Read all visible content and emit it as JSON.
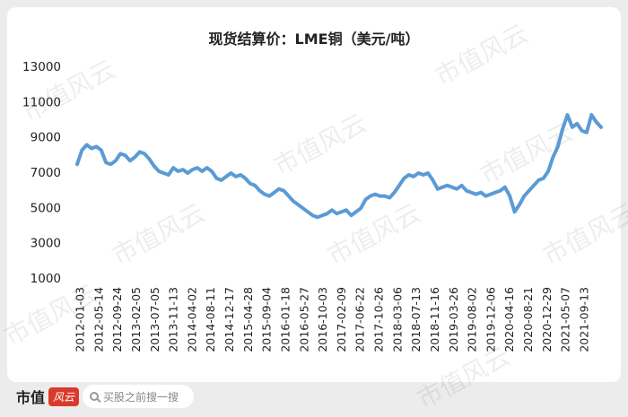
{
  "chart_data": {
    "type": "line",
    "title": "现货结算价：LME铜（美元/吨）",
    "ylim": [
      1000,
      13000
    ],
    "yticks": [
      1000,
      3000,
      5000,
      7000,
      9000,
      11000,
      13000
    ],
    "xticks": [
      "2012-01-03",
      "2012-05-14",
      "2012-09-24",
      "2013-02-05",
      "2013-07-05",
      "2013-11-13",
      "2014-04-02",
      "2014-08-11",
      "2014-12-17",
      "2015-04-28",
      "2015-09-04",
      "2016-01-18",
      "2016-05-27",
      "2016-10-03",
      "2017-02-09",
      "2017-06-22",
      "2017-10-26",
      "2018-03-06",
      "2018-07-13",
      "2018-11-16",
      "2019-03-26",
      "2019-08-02",
      "2019-12-06",
      "2020-04-16",
      "2020-08-21",
      "2020-12-29",
      "2021-05-07",
      "2021-09-13"
    ],
    "line_color": "#5b9bd5",
    "series": [
      {
        "values": [
          7500,
          8300,
          8600,
          8400,
          8500,
          8300,
          7600,
          7500,
          7700,
          8100,
          8000,
          7700,
          7900,
          8200,
          8100,
          7800,
          7400,
          7100,
          7000,
          6900,
          7300,
          7100,
          7200,
          7000,
          7200,
          7300,
          7100,
          7300,
          7100,
          6700,
          6600,
          6800,
          7000,
          6800,
          6900,
          6700,
          6400,
          6300,
          6000,
          5800,
          5700,
          5900,
          6100,
          6000,
          5700,
          5400,
          5200,
          5000,
          4800,
          4600,
          4500,
          4600,
          4700,
          4900,
          4700,
          4800,
          4900,
          4600,
          4800,
          5000,
          5500,
          5700,
          5800,
          5700,
          5700,
          5600,
          5900,
          6300,
          6700,
          6900,
          6800,
          7000,
          6900,
          7000,
          6600,
          6100,
          6200,
          6300,
          6200,
          6100,
          6300,
          6000,
          5900,
          5800,
          5900,
          5700,
          5800,
          5900,
          6000,
          6200,
          5700,
          4800,
          5200,
          5700,
          6000,
          6300,
          6600,
          6700,
          7100,
          7900,
          8500,
          9500,
          10300,
          9600,
          9800,
          9400,
          9300,
          10300,
          9900,
          9600
        ]
      }
    ]
  },
  "watermark_text": "市值风云",
  "footer": {
    "logo_text": "市值",
    "logo_badge": "风云",
    "search_placeholder": "买股之前搜一搜"
  }
}
